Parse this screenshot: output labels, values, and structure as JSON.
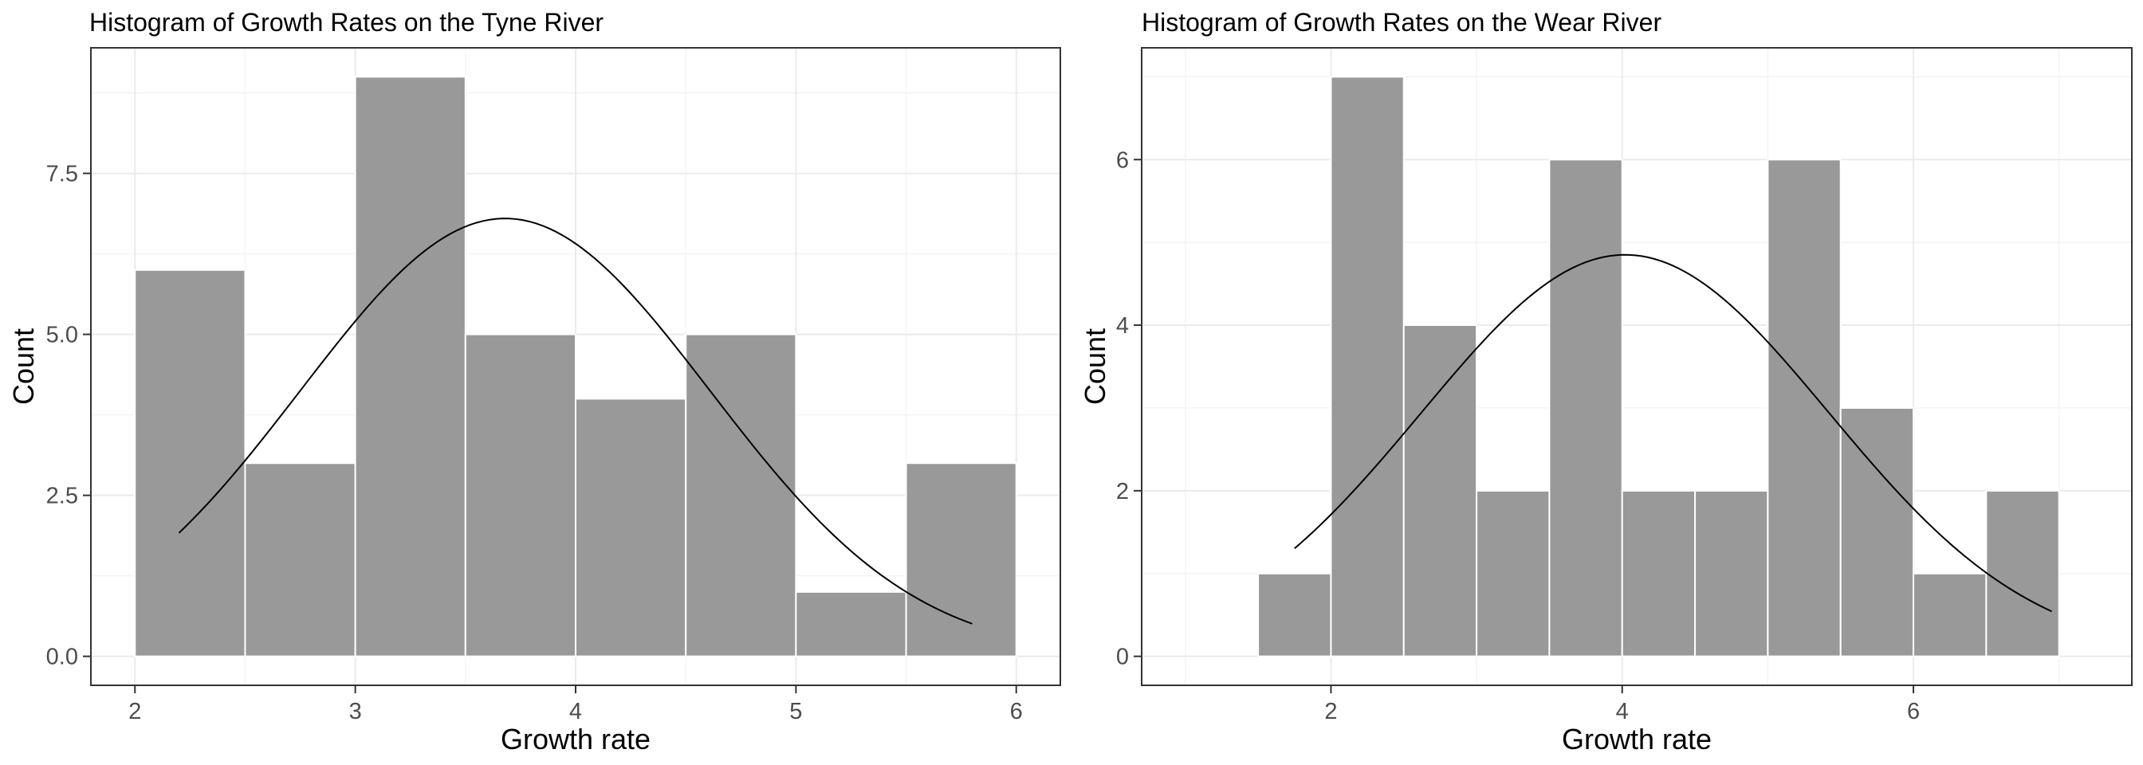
{
  "chart_data": [
    {
      "type": "bar",
      "title": "Histogram of Growth Rates on the Tyne River",
      "xlabel": "Growth rate",
      "ylabel": "Count",
      "xlim": [
        1.8,
        6.2
      ],
      "ylim": [
        -0.45,
        9.45
      ],
      "x_ticks": [
        "2",
        "3",
        "4",
        "5",
        "6"
      ],
      "x_tick_values": [
        2,
        3,
        4,
        5,
        6
      ],
      "y_ticks": [
        "0.0",
        "2.5",
        "5.0",
        "7.5"
      ],
      "y_tick_values": [
        0,
        2.5,
        5,
        7.5
      ],
      "bins": [
        {
          "from": 2.0,
          "to": 2.5,
          "count": 6
        },
        {
          "from": 2.5,
          "to": 3.0,
          "count": 3
        },
        {
          "from": 3.0,
          "to": 3.5,
          "count": 9
        },
        {
          "from": 3.5,
          "to": 4.0,
          "count": 5
        },
        {
          "from": 4.0,
          "to": 4.5,
          "count": 4
        },
        {
          "from": 4.5,
          "to": 5.0,
          "count": 5
        },
        {
          "from": 5.0,
          "to": 5.5,
          "count": 1
        },
        {
          "from": 5.5,
          "to": 6.0,
          "count": 3
        }
      ],
      "normal_curve": {
        "mean": 3.68,
        "sd": 0.93,
        "peak": 6.8,
        "x_range": [
          2.2,
          5.8
        ]
      },
      "bar_color": "#999999",
      "bar_border": "#ffffff",
      "grid": true
    },
    {
      "type": "bar",
      "title": "Histogram of Growth Rates on the Wear River",
      "xlabel": "Growth rate",
      "ylabel": "Count",
      "xlim": [
        0.7,
        7.5
      ],
      "ylim": [
        -0.35,
        7.35
      ],
      "x_ticks": [
        "2",
        "4",
        "6"
      ],
      "x_tick_values": [
        2,
        4,
        6
      ],
      "y_ticks": [
        "0",
        "2",
        "4",
        "6"
      ],
      "y_tick_values": [
        0,
        2,
        4,
        6
      ],
      "bins": [
        {
          "from": 1.5,
          "to": 2.0,
          "count": 1
        },
        {
          "from": 2.0,
          "to": 2.5,
          "count": 7
        },
        {
          "from": 2.5,
          "to": 3.0,
          "count": 4
        },
        {
          "from": 3.0,
          "to": 3.5,
          "count": 2
        },
        {
          "from": 3.5,
          "to": 4.0,
          "count": 6
        },
        {
          "from": 4.0,
          "to": 4.5,
          "count": 2
        },
        {
          "from": 4.5,
          "to": 5.0,
          "count": 2
        },
        {
          "from": 5.0,
          "to": 5.5,
          "count": 6
        },
        {
          "from": 5.5,
          "to": 6.0,
          "count": 3
        },
        {
          "from": 6.0,
          "to": 6.5,
          "count": 1
        },
        {
          "from": 6.5,
          "to": 7.0,
          "count": 2
        }
      ],
      "normal_curve": {
        "mean": 4.02,
        "sd": 1.4,
        "peak": 4.85,
        "x_range": [
          1.75,
          6.95
        ]
      },
      "bar_color": "#999999",
      "bar_border": "#ffffff",
      "grid": true
    }
  ]
}
